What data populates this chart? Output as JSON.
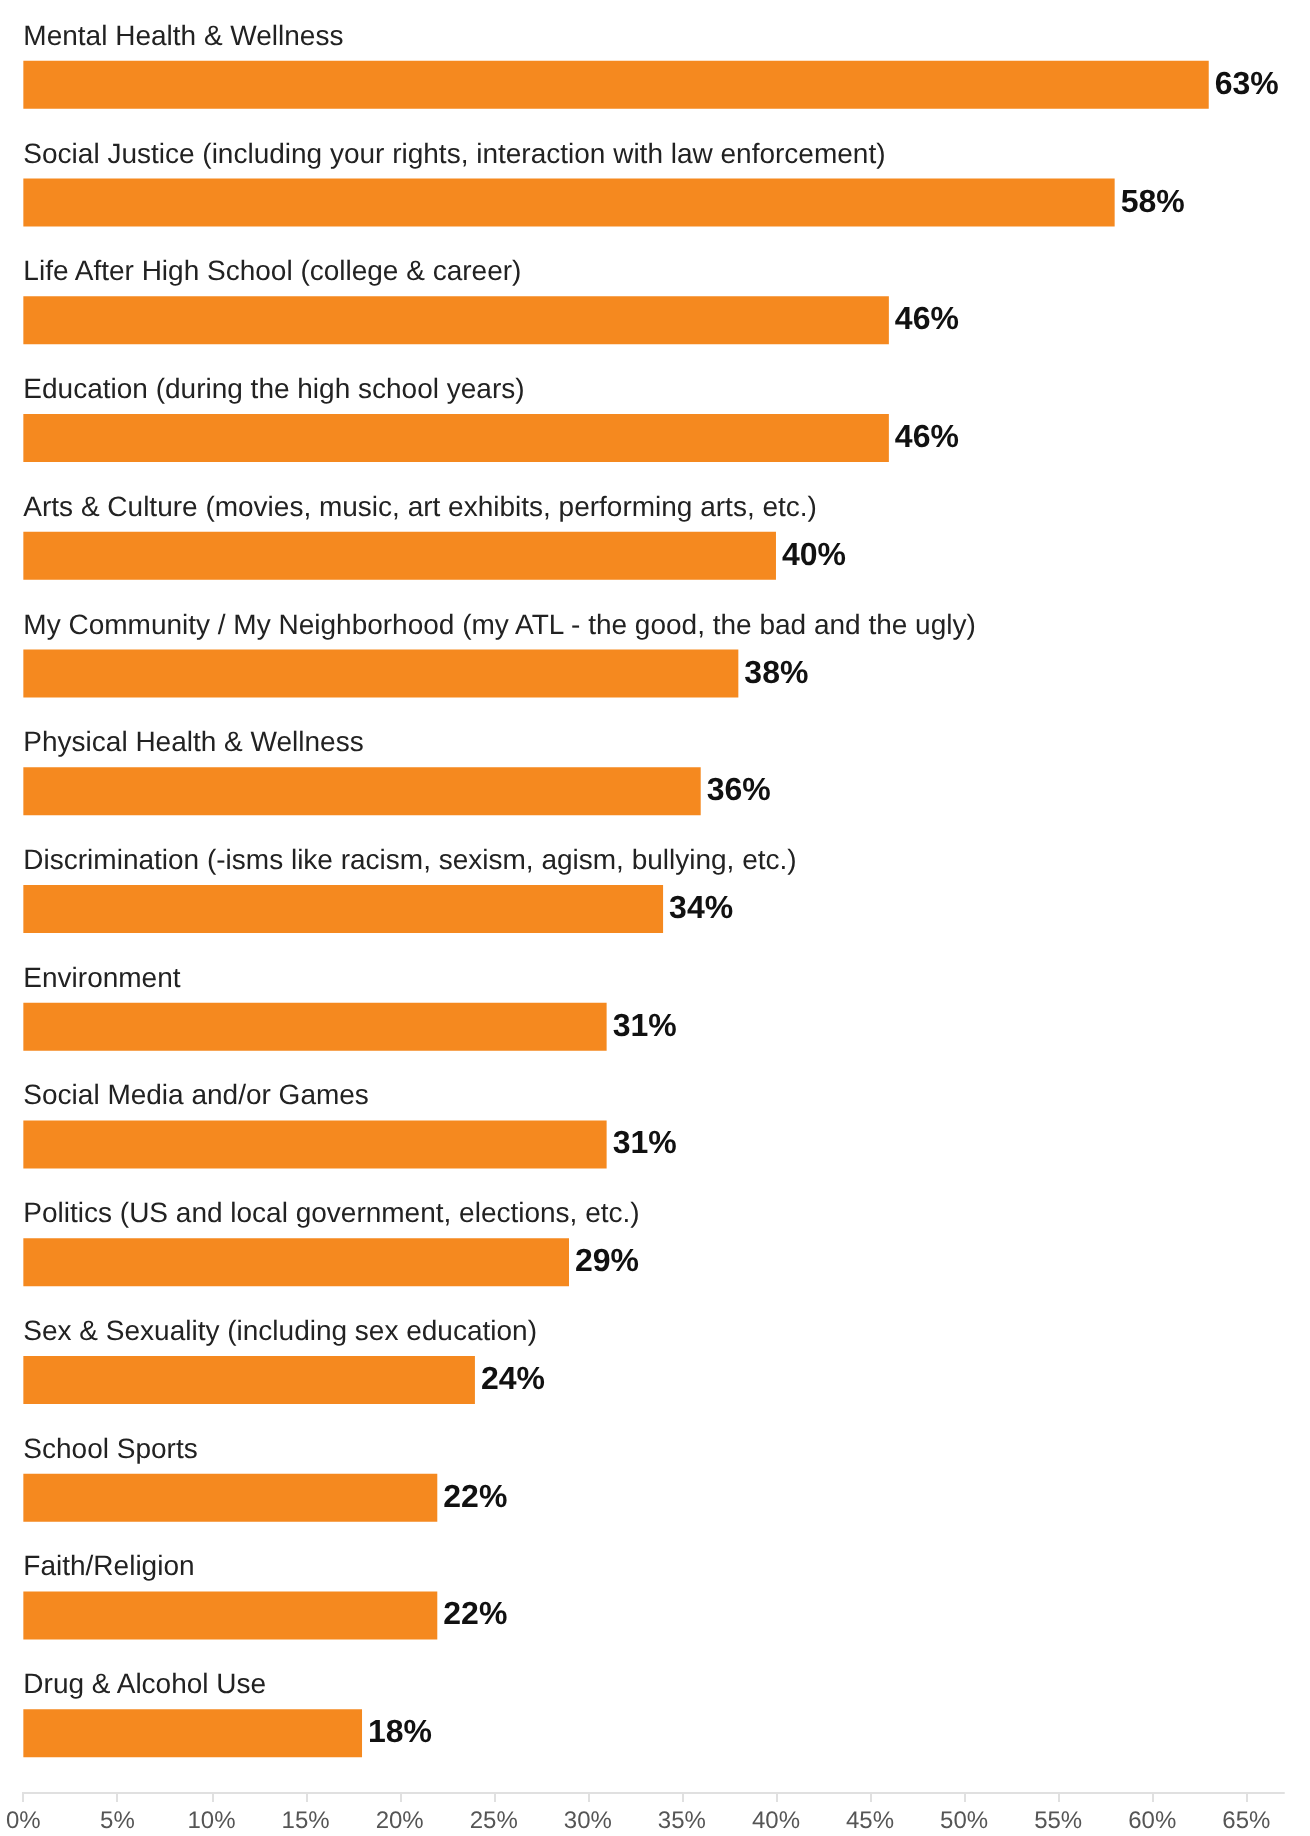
{
  "chart_data": {
    "type": "bar",
    "orientation": "horizontal",
    "categories": [
      "Mental Health & Wellness",
      "Social Justice (including your rights, interaction with law enforcement)",
      "Life After High School (college & career)",
      "Education (during the high school years)",
      "Arts & Culture (movies, music, art exhibits, performing arts, etc.)",
      "My Community / My Neighborhood (my ATL - the good, the bad and the ugly)",
      "Physical Health & Wellness",
      "Discrimination (-isms like racism, sexism, agism, bullying, etc.)",
      "Environment",
      "Social Media and/or Games",
      "Politics (US and local government, elections, etc.)",
      "Sex & Sexuality (including sex education)",
      "School Sports",
      "Faith/Religion",
      "Drug & Alcohol Use"
    ],
    "values": [
      63,
      58,
      46,
      46,
      40,
      38,
      36,
      34,
      31,
      31,
      29,
      24,
      22,
      22,
      18
    ],
    "value_labels": [
      "63%",
      "58%",
      "46%",
      "46%",
      "40%",
      "38%",
      "36%",
      "34%",
      "31%",
      "31%",
      "29%",
      "24%",
      "22%",
      "22%",
      "18%"
    ],
    "color": "#f5891f",
    "xlim": [
      0,
      67
    ],
    "xticks": [
      {
        "value": 0,
        "label": "0%"
      },
      {
        "value": 5,
        "label": "5%"
      },
      {
        "value": 10,
        "label": "10%"
      },
      {
        "value": 15,
        "label": "15%"
      },
      {
        "value": 20,
        "label": "20%"
      },
      {
        "value": 25,
        "label": "25%"
      },
      {
        "value": 30,
        "label": "30%"
      },
      {
        "value": 35,
        "label": "35%"
      },
      {
        "value": 40,
        "label": "40%"
      },
      {
        "value": 45,
        "label": "45%"
      },
      {
        "value": 50,
        "label": "50%"
      },
      {
        "value": 55,
        "label": "55%"
      },
      {
        "value": 60,
        "label": "60%"
      },
      {
        "value": 65,
        "label": "65%"
      }
    ],
    "grid": false
  }
}
